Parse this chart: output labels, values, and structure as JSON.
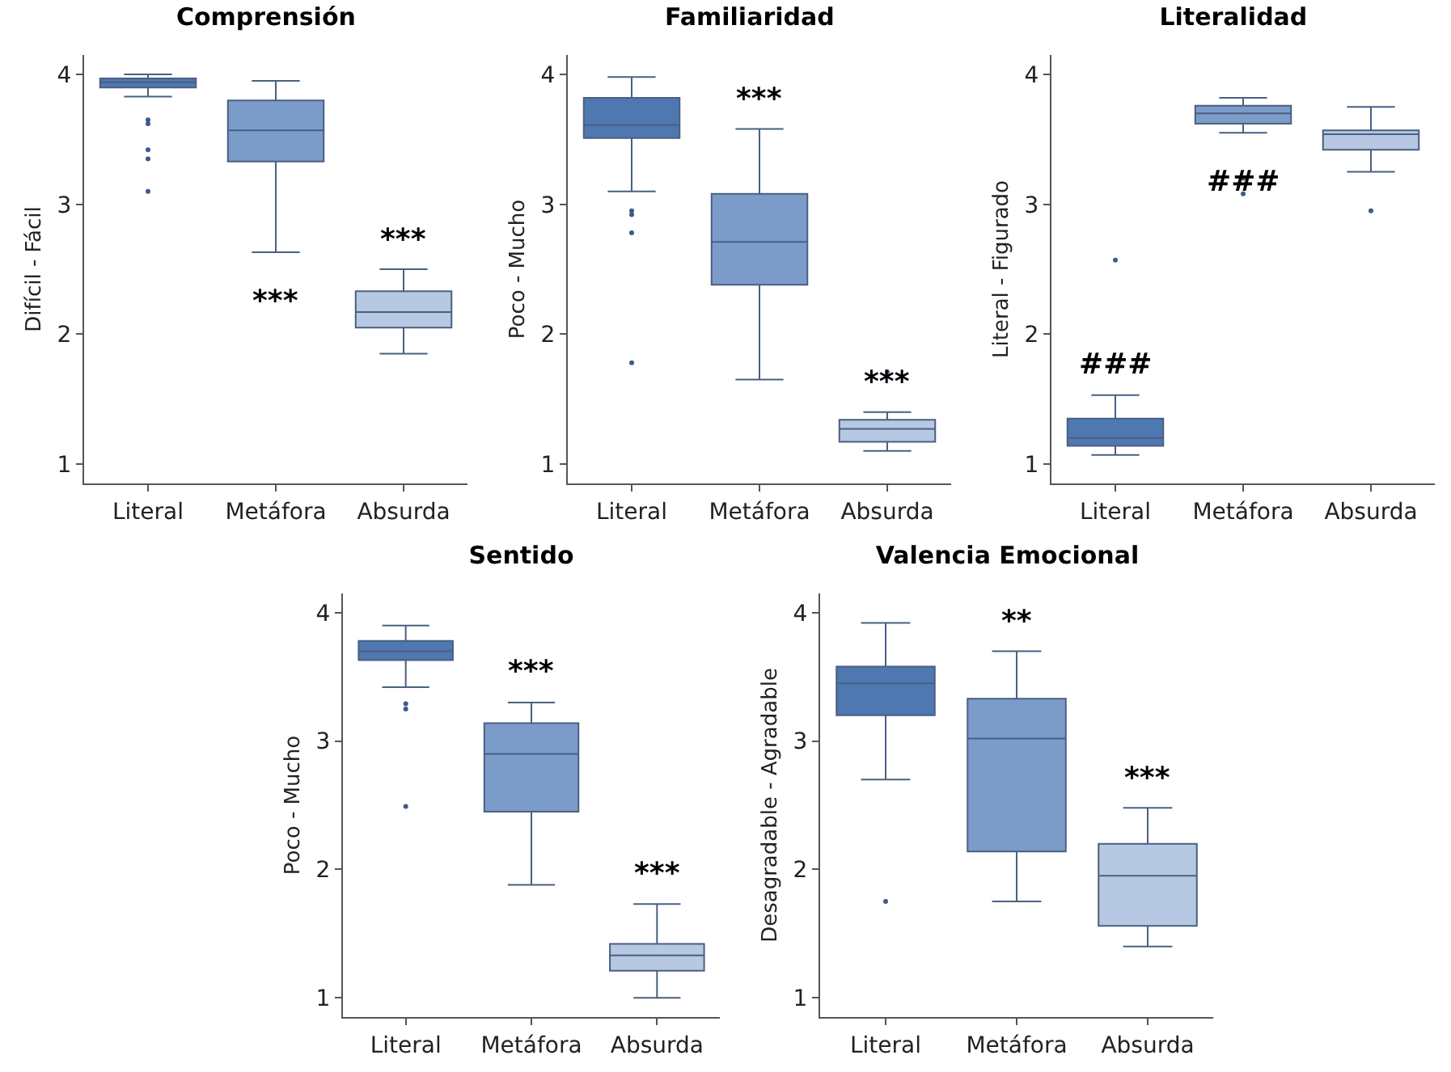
{
  "chart_data": [
    {
      "type": "box",
      "title": "Comprensión",
      "ylabel": "Difícil - Fácil",
      "categories": [
        "Literal",
        "Metáfora",
        "Absurda"
      ],
      "colors": [
        "#4f78b0",
        "#7b9cc8",
        "#b6c8e2"
      ],
      "boxes": [
        {
          "low": 3.83,
          "q1": 3.9,
          "median": 3.94,
          "q3": 3.97,
          "high": 4.0,
          "outliers": [
            3.65,
            3.62,
            3.42,
            3.35,
            3.1
          ]
        },
        {
          "low": 2.63,
          "q1": 3.33,
          "median": 3.57,
          "q3": 3.8,
          "high": 3.95
        },
        {
          "low": 1.85,
          "q1": 2.05,
          "median": 2.17,
          "q3": 2.33,
          "high": 2.5
        }
      ],
      "annotations": [
        {
          "text": "***",
          "x": "Metáfora",
          "y": 2.63
        },
        {
          "text": "***",
          "x": "Absurda",
          "y": 2.5
        }
      ],
      "ylim": [
        0.85,
        4.15
      ],
      "yticks": [
        1,
        2,
        3,
        4
      ],
      "grid": false
    },
    {
      "type": "box",
      "title": "Familiaridad",
      "ylabel": "Poco - Mucho",
      "categories": [
        "Literal",
        "Metáfora",
        "Absurda"
      ],
      "colors": [
        "#4f78b0",
        "#7b9cc8",
        "#b6c8e2"
      ],
      "boxes": [
        {
          "low": 3.1,
          "q1": 3.51,
          "median": 3.61,
          "q3": 3.82,
          "high": 3.98,
          "outliers": [
            2.95,
            2.92,
            2.78,
            1.78
          ]
        },
        {
          "low": 1.65,
          "q1": 2.38,
          "median": 2.71,
          "q3": 3.08,
          "high": 3.58
        },
        {
          "low": 1.1,
          "q1": 1.17,
          "median": 1.27,
          "q3": 1.34,
          "high": 1.4,
          "outliers": [
            1.71
          ]
        }
      ],
      "annotations": [
        {
          "text": "***",
          "x": "Metáfora",
          "y": 3.58
        },
        {
          "text": "***",
          "x": "Absurda",
          "y": 1.4
        }
      ],
      "ylim": [
        0.85,
        4.15
      ],
      "yticks": [
        1,
        2,
        3,
        4
      ],
      "grid": false
    },
    {
      "type": "box",
      "title": "Literalidad",
      "ylabel": "Literal - Figurado",
      "categories": [
        "Literal",
        "Metáfora",
        "Absurda"
      ],
      "colors": [
        "#4f78b0",
        "#7b9cc8",
        "#b6c8e2"
      ],
      "boxes": [
        {
          "low": 1.07,
          "q1": 1.14,
          "median": 1.2,
          "q3": 1.35,
          "high": 1.53,
          "outliers": [
            2.57
          ]
        },
        {
          "low": 3.55,
          "q1": 3.62,
          "median": 3.7,
          "q3": 3.76,
          "high": 3.82,
          "outliers": [
            3.2,
            3.08
          ]
        },
        {
          "low": 3.25,
          "q1": 3.42,
          "median": 3.54,
          "q3": 3.57,
          "high": 3.75,
          "outliers": [
            2.95
          ]
        }
      ],
      "annotations": [
        {
          "text": "###",
          "x": "Literal",
          "y": 1.53
        },
        {
          "text": "###",
          "x": "Metáfora",
          "y": 3.55
        }
      ],
      "ylim": [
        0.85,
        4.15
      ],
      "yticks": [
        1,
        2,
        3,
        4
      ],
      "grid": false
    },
    {
      "type": "box",
      "title": "Sentido",
      "ylabel": "Poco - Mucho",
      "categories": [
        "Literal",
        "Metáfora",
        "Absurda"
      ],
      "colors": [
        "#4f78b0",
        "#7b9cc8",
        "#b6c8e2"
      ],
      "boxes": [
        {
          "low": 3.42,
          "q1": 3.63,
          "median": 3.7,
          "q3": 3.78,
          "high": 3.9,
          "outliers": [
            3.29,
            3.25,
            2.49
          ]
        },
        {
          "low": 1.88,
          "q1": 2.45,
          "median": 2.9,
          "q3": 3.14,
          "high": 3.3
        },
        {
          "low": 1.0,
          "q1": 1.21,
          "median": 1.33,
          "q3": 1.42,
          "high": 1.73
        }
      ],
      "annotations": [
        {
          "text": "***",
          "x": "Metáfora",
          "y": 3.3
        },
        {
          "text": "***",
          "x": "Absurda",
          "y": 1.73
        }
      ],
      "ylim": [
        0.85,
        4.15
      ],
      "yticks": [
        1,
        2,
        3,
        4
      ],
      "grid": false
    },
    {
      "type": "box",
      "title": "Valencia Emocional",
      "ylabel": "Desagradable - Agradable",
      "categories": [
        "Literal",
        "Metáfora",
        "Absurda"
      ],
      "colors": [
        "#4f78b0",
        "#7b9cc8",
        "#b6c8e2"
      ],
      "boxes": [
        {
          "low": 2.7,
          "q1": 3.2,
          "median": 3.45,
          "q3": 3.58,
          "high": 3.92,
          "outliers": [
            1.75
          ]
        },
        {
          "low": 1.75,
          "q1": 2.14,
          "median": 3.02,
          "q3": 3.33,
          "high": 3.7
        },
        {
          "low": 1.4,
          "q1": 1.56,
          "median": 1.95,
          "q3": 2.2,
          "high": 2.48
        }
      ],
      "annotations": [
        {
          "text": "**",
          "x": "Metáfora",
          "y": 3.7
        },
        {
          "text": "***",
          "x": "Absurda",
          "y": 2.48
        }
      ],
      "ylim": [
        0.85,
        4.15
      ],
      "yticks": [
        1,
        2,
        3,
        4
      ],
      "grid": false
    }
  ]
}
